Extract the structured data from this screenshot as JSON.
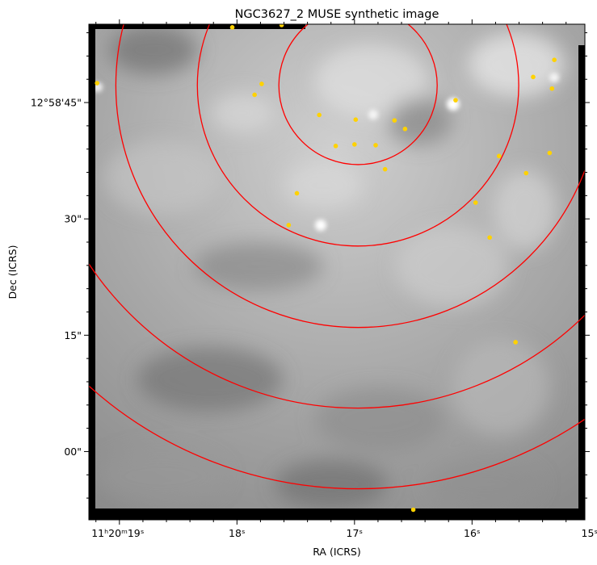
{
  "chart_data": {
    "type": "image",
    "title": "NGC3627_2 MUSE synthetic image",
    "xlabel": "RA (ICRS)",
    "ylabel": "Dec (ICRS)",
    "image_style": "grayscale",
    "ra_range_s": [
      19.26,
      15.04
    ],
    "dec_range_arcsec": [
      -8.8,
      55.1
    ],
    "x_ticks": [
      {
        "value": 19,
        "label": "11ʰ20ᵐ19ˢ"
      },
      {
        "value": 18,
        "label": "18ˢ"
      },
      {
        "value": 17,
        "label": "17ˢ"
      },
      {
        "value": 16,
        "label": "16ˢ"
      },
      {
        "value": 15,
        "label": "15ˢ"
      }
    ],
    "y_ticks": [
      {
        "value": 45,
        "label": "12°58'45\""
      },
      {
        "value": 30,
        "label": "30\""
      },
      {
        "value": 15,
        "label": "15\""
      },
      {
        "value": 0,
        "label": "00\""
      }
    ],
    "circle_center": {
      "ra_s": 16.97,
      "dec_arcsec": 47.2
    },
    "circle_radii_arcsec": [
      10.2,
      20.7,
      31.2,
      41.6,
      52.0
    ],
    "circle_color": "#ff0000",
    "source_color": "#ffd200",
    "sources": [
      {
        "ra_s": 18.04,
        "dec_arcsec": 54.7
      },
      {
        "ra_s": 17.62,
        "dec_arcsec": 55.0
      },
      {
        "ra_s": 15.3,
        "dec_arcsec": 50.5
      },
      {
        "ra_s": 15.48,
        "dec_arcsec": 48.3
      },
      {
        "ra_s": 15.32,
        "dec_arcsec": 46.8
      },
      {
        "ra_s": 19.19,
        "dec_arcsec": 47.5
      },
      {
        "ra_s": 17.79,
        "dec_arcsec": 47.4
      },
      {
        "ra_s": 17.85,
        "dec_arcsec": 46.0
      },
      {
        "ra_s": 16.14,
        "dec_arcsec": 45.3
      },
      {
        "ra_s": 17.3,
        "dec_arcsec": 43.4
      },
      {
        "ra_s": 16.99,
        "dec_arcsec": 42.8
      },
      {
        "ra_s": 16.66,
        "dec_arcsec": 42.7
      },
      {
        "ra_s": 16.57,
        "dec_arcsec": 41.6
      },
      {
        "ra_s": 17.16,
        "dec_arcsec": 39.4
      },
      {
        "ra_s": 17.0,
        "dec_arcsec": 39.6
      },
      {
        "ra_s": 16.82,
        "dec_arcsec": 39.5
      },
      {
        "ra_s": 15.34,
        "dec_arcsec": 38.5
      },
      {
        "ra_s": 15.77,
        "dec_arcsec": 38.1
      },
      {
        "ra_s": 16.74,
        "dec_arcsec": 36.4
      },
      {
        "ra_s": 15.54,
        "dec_arcsec": 35.9
      },
      {
        "ra_s": 17.49,
        "dec_arcsec": 33.3
      },
      {
        "ra_s": 15.97,
        "dec_arcsec": 32.1
      },
      {
        "ra_s": 17.56,
        "dec_arcsec": 29.2
      },
      {
        "ra_s": 15.85,
        "dec_arcsec": 27.6
      },
      {
        "ra_s": 15.63,
        "dec_arcsec": 14.1
      },
      {
        "ra_s": 16.5,
        "dec_arcsec": -7.5
      }
    ]
  }
}
